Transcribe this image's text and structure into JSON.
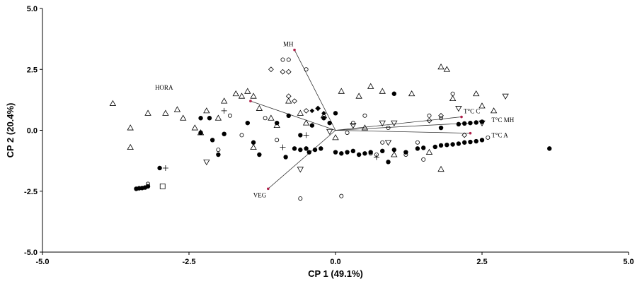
{
  "chart_data": {
    "type": "scatter",
    "xlabel": "CP 1 (49.1%)",
    "ylabel": "CP 2 (20.4%)",
    "xlim": [
      -5.0,
      5.0
    ],
    "ylim": [
      -5.0,
      5.0
    ],
    "x_ticks": [
      {
        "value": -5.0,
        "label": "-5.0"
      },
      {
        "value": -2.5,
        "label": "-2.5"
      },
      {
        "value": 0.0,
        "label": "0.0"
      },
      {
        "value": 2.5,
        "label": "2.5"
      },
      {
        "value": 5.0,
        "label": "5.0"
      }
    ],
    "y_ticks": [
      {
        "value": 5.0,
        "label": "5.0"
      },
      {
        "value": 2.5,
        "label": "2.5"
      },
      {
        "value": 0.0,
        "label": "0.0"
      },
      {
        "value": -2.5,
        "label": "-2.5"
      },
      {
        "value": -5.0,
        "label": "-5.0"
      }
    ],
    "grid": false,
    "legend": false,
    "loading_vectors": [
      {
        "label": "MH",
        "x": -0.7,
        "y": 3.3
      },
      {
        "label": "HORA",
        "x": -1.45,
        "y": 1.2
      },
      {
        "label": "VEG",
        "x": -1.15,
        "y": -2.4
      },
      {
        "label": "T°C C",
        "x": 2.15,
        "y": 0.55
      },
      {
        "label": "T°C MH",
        "x": 2.3,
        "y": 0.3
      },
      {
        "label": "T°C A",
        "x": 2.3,
        "y": -0.12
      }
    ],
    "series": [
      {
        "marker": "filled-circle",
        "points": [
          [
            -3.4,
            -2.4
          ],
          [
            -3.35,
            -2.38
          ],
          [
            -3.3,
            -2.37
          ],
          [
            -3.25,
            -2.35
          ],
          [
            -3.2,
            -2.3
          ],
          [
            -3.0,
            -1.55
          ],
          [
            -2.3,
            0.5
          ],
          [
            -2.15,
            0.5
          ],
          [
            -2.3,
            -0.1
          ],
          [
            -2.1,
            -0.4
          ],
          [
            -2.0,
            -1.0
          ],
          [
            -1.9,
            -0.15
          ],
          [
            -1.5,
            0.3
          ],
          [
            -1.4,
            -0.5
          ],
          [
            -1.3,
            -1.0
          ],
          [
            -1.0,
            0.3
          ],
          [
            -0.8,
            0.6
          ],
          [
            -0.85,
            -1.1
          ],
          [
            -0.7,
            -0.75
          ],
          [
            -0.6,
            -0.8
          ],
          [
            -0.5,
            -0.75
          ],
          [
            -0.45,
            -0.9
          ],
          [
            -0.35,
            -0.8
          ],
          [
            -0.25,
            -0.75
          ],
          [
            -0.6,
            -0.2
          ],
          [
            -0.4,
            0.2
          ],
          [
            -0.2,
            0.5
          ],
          [
            -0.1,
            0.3
          ],
          [
            0.0,
            0.7
          ],
          [
            0.0,
            -0.9
          ],
          [
            0.1,
            -0.95
          ],
          [
            0.2,
            -0.9
          ],
          [
            0.3,
            -0.85
          ],
          [
            0.4,
            -1.0
          ],
          [
            0.5,
            -0.95
          ],
          [
            0.6,
            -0.9
          ],
          [
            0.8,
            -0.85
          ],
          [
            0.9,
            -1.3
          ],
          [
            1.0,
            1.5
          ],
          [
            1.0,
            -0.8
          ],
          [
            1.2,
            -0.9
          ],
          [
            1.4,
            -0.75
          ],
          [
            1.5,
            -0.72
          ],
          [
            1.7,
            -0.68
          ],
          [
            1.8,
            -0.62
          ],
          [
            1.9,
            -0.6
          ],
          [
            2.0,
            -0.58
          ],
          [
            2.1,
            -0.55
          ],
          [
            2.2,
            -0.5
          ],
          [
            2.3,
            -0.48
          ],
          [
            2.4,
            -0.45
          ],
          [
            2.5,
            -0.4
          ],
          [
            1.8,
            0.1
          ],
          [
            2.1,
            0.25
          ],
          [
            2.2,
            0.28
          ],
          [
            2.3,
            0.3
          ],
          [
            2.4,
            0.32
          ],
          [
            2.5,
            0.35
          ],
          [
            3.65,
            -0.75
          ]
        ]
      },
      {
        "marker": "open-circle",
        "points": [
          [
            -3.2,
            -2.2
          ],
          [
            -2.0,
            -0.8
          ],
          [
            -1.8,
            0.6
          ],
          [
            -1.6,
            -0.2
          ],
          [
            -1.2,
            0.5
          ],
          [
            -1.0,
            -0.4
          ],
          [
            -0.9,
            2.9
          ],
          [
            -0.8,
            2.9
          ],
          [
            -0.5,
            2.5
          ],
          [
            -0.6,
            -2.8
          ],
          [
            0.1,
            -2.7
          ],
          [
            0.2,
            -0.1
          ],
          [
            0.3,
            0.3
          ],
          [
            0.5,
            0.6
          ],
          [
            0.6,
            -0.95
          ],
          [
            0.7,
            -1.0
          ],
          [
            0.8,
            -0.5
          ],
          [
            1.2,
            -1.0
          ],
          [
            1.4,
            -0.5
          ],
          [
            1.6,
            0.6
          ],
          [
            1.8,
            0.5
          ],
          [
            2.0,
            1.5
          ],
          [
            2.6,
            -0.3
          ],
          [
            1.5,
            -1.2
          ],
          [
            0.9,
            0.1
          ]
        ]
      },
      {
        "marker": "open-triangle-up",
        "points": [
          [
            -3.8,
            1.1
          ],
          [
            -3.5,
            0.1
          ],
          [
            -3.5,
            -0.7
          ],
          [
            -3.2,
            0.7
          ],
          [
            -2.9,
            0.7
          ],
          [
            -2.7,
            0.85
          ],
          [
            -2.6,
            0.5
          ],
          [
            -2.4,
            0.1
          ],
          [
            -2.3,
            -0.1
          ],
          [
            -2.2,
            0.8
          ],
          [
            -2.0,
            0.5
          ],
          [
            -1.9,
            1.2
          ],
          [
            -1.7,
            1.5
          ],
          [
            -1.6,
            1.4
          ],
          [
            -1.5,
            1.6
          ],
          [
            -1.4,
            1.4
          ],
          [
            -1.3,
            0.9
          ],
          [
            -1.1,
            0.5
          ],
          [
            -1.0,
            0.2
          ],
          [
            -1.4,
            -0.7
          ],
          [
            -0.8,
            1.2
          ],
          [
            -0.6,
            0.7
          ],
          [
            -0.5,
            0.3
          ],
          [
            -0.2,
            0.6
          ],
          [
            0.0,
            -0.3
          ],
          [
            0.1,
            1.6
          ],
          [
            0.4,
            1.4
          ],
          [
            0.6,
            1.8
          ],
          [
            0.8,
            1.6
          ],
          [
            1.0,
            -1.0
          ],
          [
            1.3,
            1.5
          ],
          [
            1.6,
            -0.9
          ],
          [
            1.8,
            2.6
          ],
          [
            1.9,
            2.5
          ],
          [
            2.0,
            1.3
          ],
          [
            2.4,
            1.5
          ],
          [
            2.5,
            1.0
          ],
          [
            2.7,
            0.8
          ],
          [
            1.8,
            -1.6
          ],
          [
            0.5,
            0.1
          ]
        ]
      },
      {
        "marker": "open-triangle-down",
        "points": [
          [
            -2.2,
            -1.3
          ],
          [
            -0.6,
            -1.6
          ],
          [
            0.3,
            0.2
          ],
          [
            0.9,
            -0.5
          ],
          [
            1.0,
            0.3
          ],
          [
            2.5,
            0.3
          ],
          [
            2.9,
            1.4
          ],
          [
            2.1,
            0.9
          ],
          [
            -0.1,
            -0.05
          ],
          [
            0.8,
            0.3
          ]
        ]
      },
      {
        "marker": "open-diamond",
        "points": [
          [
            -1.1,
            2.5
          ],
          [
            -0.9,
            2.4
          ],
          [
            -0.8,
            2.4
          ],
          [
            -0.8,
            1.4
          ],
          [
            -0.7,
            1.2
          ],
          [
            -0.5,
            0.8
          ],
          [
            -0.3,
            0.9
          ],
          [
            1.8,
            0.6
          ],
          [
            1.6,
            0.4
          ],
          [
            2.2,
            -0.2
          ]
        ]
      },
      {
        "marker": "filled-diamond",
        "points": [
          [
            -0.4,
            0.8
          ],
          [
            -0.3,
            0.9
          ],
          [
            -0.2,
            0.7
          ]
        ]
      },
      {
        "marker": "plus",
        "points": [
          [
            -2.9,
            -1.55
          ],
          [
            -0.9,
            -0.7
          ],
          [
            0.7,
            -1.1
          ],
          [
            -0.5,
            -0.2
          ],
          [
            -1.9,
            0.8
          ]
        ]
      },
      {
        "marker": "open-square",
        "points": [
          [
            -2.95,
            -2.3
          ]
        ]
      }
    ]
  }
}
